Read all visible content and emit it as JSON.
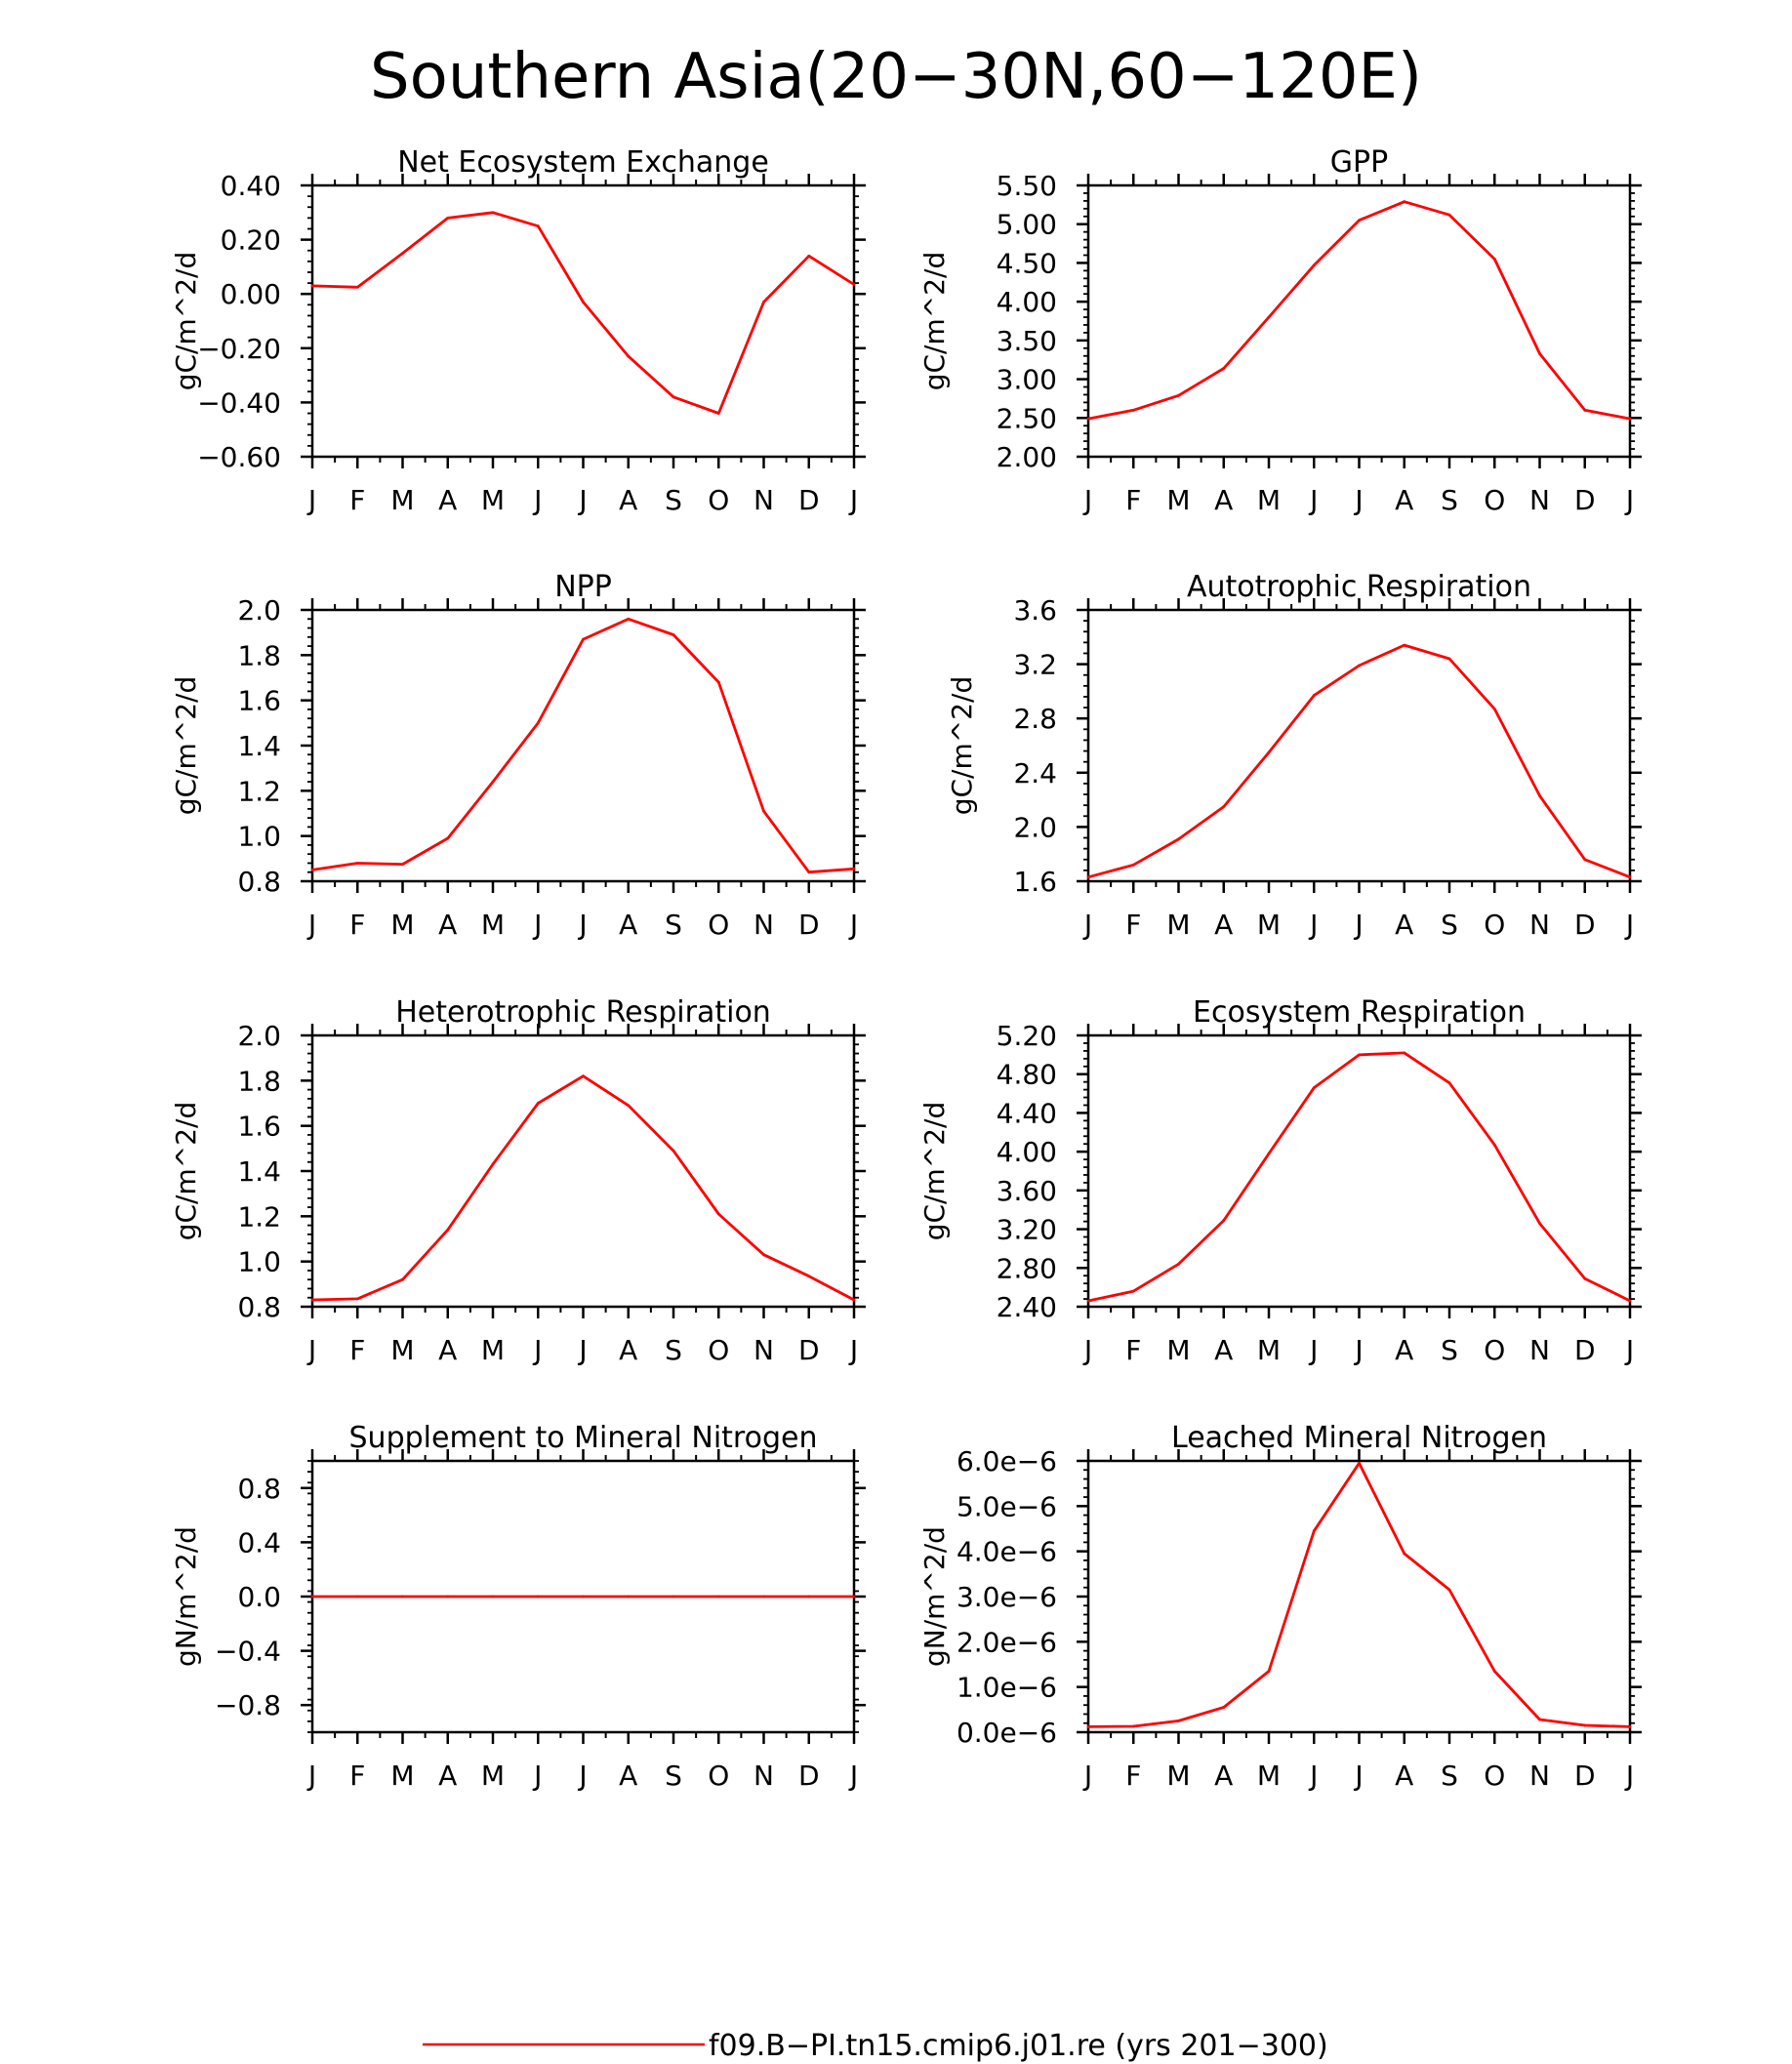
{
  "title": "Southern Asia(20−30N,60−120E)",
  "line_color": "#ff0000",
  "legend": {
    "label": "f09.B−PI.tn15.cmip6.j01.re (yrs 201−300)"
  },
  "chart_data": [
    {
      "type": "line",
      "title": "Net Ecosystem Exchange",
      "ylabel": "gC/m^2/d",
      "categories": [
        "J",
        "F",
        "M",
        "A",
        "M",
        "J",
        "J",
        "A",
        "S",
        "O",
        "N",
        "D",
        "J"
      ],
      "ylim": [
        -0.6,
        0.4
      ],
      "yticks": [
        -0.6,
        -0.4,
        -0.2,
        0.0,
        0.2,
        0.4
      ],
      "ytick_labels": [
        "−0.60",
        "−0.40",
        "−0.20",
        "0.00",
        "0.20",
        "0.40"
      ],
      "values": [
        0.03,
        0.025,
        0.15,
        0.28,
        0.3,
        0.25,
        -0.03,
        -0.23,
        -0.38,
        -0.44,
        -0.03,
        0.14,
        0.035
      ]
    },
    {
      "type": "line",
      "title": "GPP",
      "ylabel": "gC/m^2/d",
      "categories": [
        "J",
        "F",
        "M",
        "A",
        "M",
        "J",
        "J",
        "A",
        "S",
        "O",
        "N",
        "D",
        "J"
      ],
      "ylim": [
        2.0,
        5.5
      ],
      "yticks": [
        2.0,
        2.5,
        3.0,
        3.5,
        4.0,
        4.5,
        5.0,
        5.5
      ],
      "ytick_labels": [
        "2.00",
        "2.50",
        "3.00",
        "3.50",
        "4.00",
        "4.50",
        "5.00",
        "5.50"
      ],
      "values": [
        2.49,
        2.6,
        2.79,
        3.14,
        3.8,
        4.47,
        5.05,
        5.29,
        5.12,
        4.55,
        3.33,
        2.6,
        2.49
      ]
    },
    {
      "type": "line",
      "title": "NPP",
      "ylabel": "gC/m^2/d",
      "categories": [
        "J",
        "F",
        "M",
        "A",
        "M",
        "J",
        "J",
        "A",
        "S",
        "O",
        "N",
        "D",
        "J"
      ],
      "ylim": [
        0.8,
        2.0
      ],
      "yticks": [
        0.8,
        1.0,
        1.2,
        1.4,
        1.6,
        1.8,
        2.0
      ],
      "ytick_labels": [
        "0.8",
        "1.0",
        "1.2",
        "1.4",
        "1.6",
        "1.8",
        "2.0"
      ],
      "values": [
        0.85,
        0.88,
        0.875,
        0.99,
        1.24,
        1.5,
        1.87,
        1.96,
        1.89,
        1.68,
        1.11,
        0.84,
        0.855
      ]
    },
    {
      "type": "line",
      "title": "Autotrophic Respiration",
      "ylabel": "gC/m^2/d",
      "categories": [
        "J",
        "F",
        "M",
        "A",
        "M",
        "J",
        "J",
        "A",
        "S",
        "O",
        "N",
        "D",
        "J"
      ],
      "ylim": [
        1.6,
        3.6
      ],
      "yticks": [
        1.6,
        2.0,
        2.4,
        2.8,
        3.2,
        3.6
      ],
      "ytick_labels": [
        "1.6",
        "2.0",
        "2.4",
        "2.8",
        "3.2",
        "3.6"
      ],
      "values": [
        1.63,
        1.72,
        1.91,
        2.15,
        2.55,
        2.97,
        3.19,
        3.34,
        3.24,
        2.87,
        2.23,
        1.76,
        1.63
      ]
    },
    {
      "type": "line",
      "title": "Heterotrophic Respiration",
      "ylabel": "gC/m^2/d",
      "categories": [
        "J",
        "F",
        "M",
        "A",
        "M",
        "J",
        "J",
        "A",
        "S",
        "O",
        "N",
        "D",
        "J"
      ],
      "ylim": [
        0.8,
        2.0
      ],
      "yticks": [
        0.8,
        1.0,
        1.2,
        1.4,
        1.6,
        1.8,
        2.0
      ],
      "ytick_labels": [
        "0.8",
        "1.0",
        "1.2",
        "1.4",
        "1.6",
        "1.8",
        "2.0"
      ],
      "values": [
        0.83,
        0.835,
        0.92,
        1.14,
        1.43,
        1.7,
        1.82,
        1.69,
        1.49,
        1.21,
        1.03,
        0.935,
        0.83
      ]
    },
    {
      "type": "line",
      "title": "Ecosystem Respiration",
      "ylabel": "gC/m^2/d",
      "categories": [
        "J",
        "F",
        "M",
        "A",
        "M",
        "J",
        "J",
        "A",
        "S",
        "O",
        "N",
        "D",
        "J"
      ],
      "ylim": [
        2.4,
        5.2
      ],
      "yticks": [
        2.4,
        2.8,
        3.2,
        3.6,
        4.0,
        4.4,
        4.8,
        5.2
      ],
      "ytick_labels": [
        "2.40",
        "2.80",
        "3.20",
        "3.60",
        "4.00",
        "4.40",
        "4.80",
        "5.20"
      ],
      "values": [
        2.46,
        2.56,
        2.84,
        3.29,
        3.98,
        4.66,
        5.0,
        5.02,
        4.71,
        4.07,
        3.26,
        2.69,
        2.46
      ]
    },
    {
      "type": "line",
      "title": "Supplement to Mineral Nitrogen",
      "ylabel": "gN/m^2/d",
      "categories": [
        "J",
        "F",
        "M",
        "A",
        "M",
        "J",
        "J",
        "A",
        "S",
        "O",
        "N",
        "D",
        "J"
      ],
      "ylim": [
        -1.0,
        1.0
      ],
      "yticks": [
        -0.8,
        -0.4,
        0.0,
        0.4,
        0.8
      ],
      "ytick_labels": [
        "−0.8",
        "−0.4",
        "0.0",
        "0.4",
        "0.8"
      ],
      "values": [
        0,
        0,
        0,
        0,
        0,
        0,
        0,
        0,
        0,
        0,
        0,
        0,
        0
      ]
    },
    {
      "type": "line",
      "title": "Leached Mineral Nitrogen",
      "ylabel": "gN/m^2/d",
      "categories": [
        "J",
        "F",
        "M",
        "A",
        "M",
        "J",
        "J",
        "A",
        "S",
        "O",
        "N",
        "D",
        "J"
      ],
      "ylim": [
        0.0,
        6e-06
      ],
      "yticks": [
        0.0,
        1e-06,
        2e-06,
        3e-06,
        4e-06,
        5e-06,
        6e-06
      ],
      "ytick_labels": [
        "0.0e−6",
        "1.0e−6",
        "2.0e−6",
        "3.0e−6",
        "4.0e−6",
        "5.0e−6",
        "6.0e−6"
      ],
      "values": [
        1.2e-07,
        1.3e-07,
        2.5e-07,
        5.5e-07,
        1.35e-06,
        4.45e-06,
        5.95e-06,
        3.95e-06,
        3.15e-06,
        1.35e-06,
        2.8e-07,
        1.5e-07,
        1.2e-07
      ]
    }
  ]
}
